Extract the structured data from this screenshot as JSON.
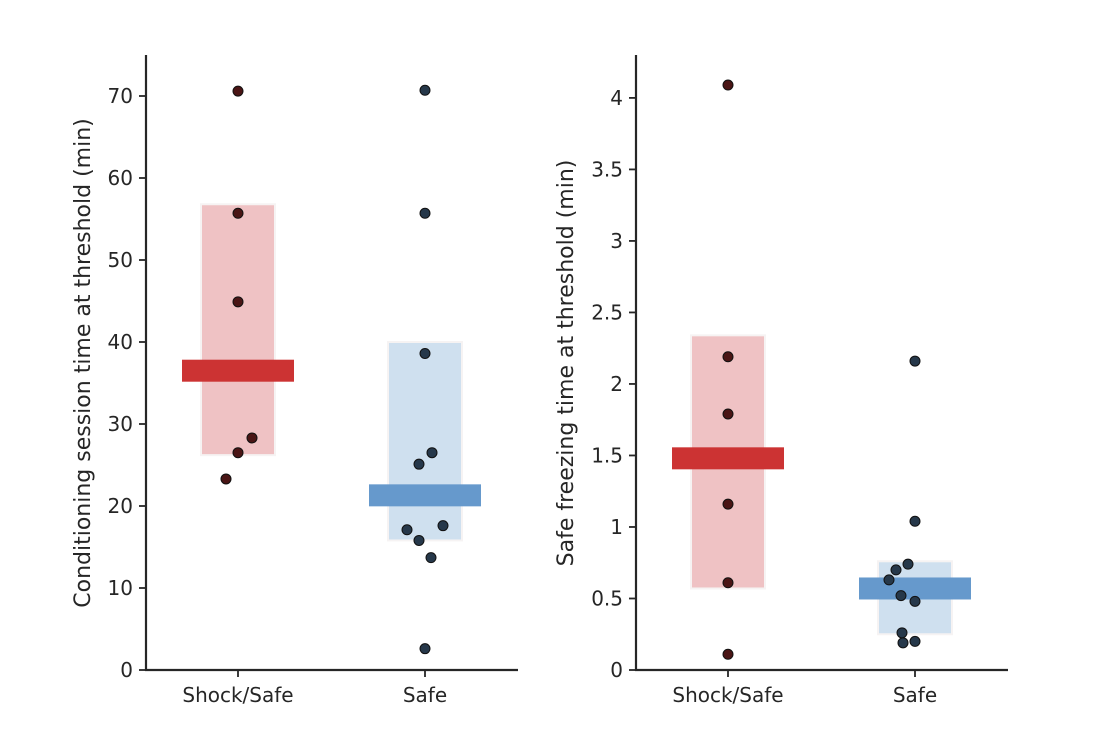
{
  "chart_data": [
    {
      "type": "scatter",
      "ylabel": "Conditioning session time at threshold (min)",
      "categories": [
        "Shock/Safe",
        "Safe"
      ],
      "ylim": [
        0,
        75
      ],
      "yticks": [
        0,
        10,
        20,
        30,
        40,
        50,
        60,
        70
      ],
      "yticklabels": [
        "0",
        "10",
        "20",
        "30",
        "40",
        "50",
        "60",
        "70"
      ],
      "series": [
        {
          "category": "Shock/Safe",
          "color": "#cc3333",
          "band_color": "#efc2c4",
          "point_color": "#4a1515",
          "mean": 36.5,
          "ci": [
            26.2,
            56.8
          ],
          "points": [
            70.6,
            55.7,
            44.9,
            28.3,
            26.5,
            23.3
          ]
        },
        {
          "category": "Safe",
          "color": "#6699cc",
          "band_color": "#cfe0ef",
          "point_color": "#26384a",
          "mean": 21.3,
          "ci": [
            15.8,
            40.0
          ],
          "points": [
            70.7,
            55.7,
            38.6,
            26.5,
            25.1,
            17.6,
            17.1,
            15.8,
            13.7,
            2.6
          ]
        }
      ]
    },
    {
      "type": "scatter",
      "ylabel": "Safe freezing time at threshold (min)",
      "categories": [
        "Shock/Safe",
        "Safe"
      ],
      "ylim": [
        0,
        4.3
      ],
      "yticks": [
        0,
        0.5,
        1,
        1.5,
        2,
        2.5,
        3,
        3.5,
        4
      ],
      "yticklabels": [
        "0",
        "0.5",
        "1",
        "1.5",
        "2",
        "2.5",
        "3",
        "3.5",
        "4"
      ],
      "series": [
        {
          "category": "Shock/Safe",
          "color": "#cc3333",
          "band_color": "#efc2c4",
          "point_color": "#4a1515",
          "mean": 1.48,
          "ci": [
            0.57,
            2.34
          ],
          "points": [
            4.09,
            2.19,
            1.79,
            1.16,
            0.61,
            0.11
          ]
        },
        {
          "category": "Safe",
          "color": "#6699cc",
          "band_color": "#cfe0ef",
          "point_color": "#26384a",
          "mean": 0.57,
          "ci": [
            0.25,
            0.76
          ],
          "points": [
            2.16,
            1.04,
            0.74,
            0.7,
            0.63,
            0.52,
            0.48,
            0.26,
            0.2,
            0.19
          ]
        }
      ]
    }
  ]
}
